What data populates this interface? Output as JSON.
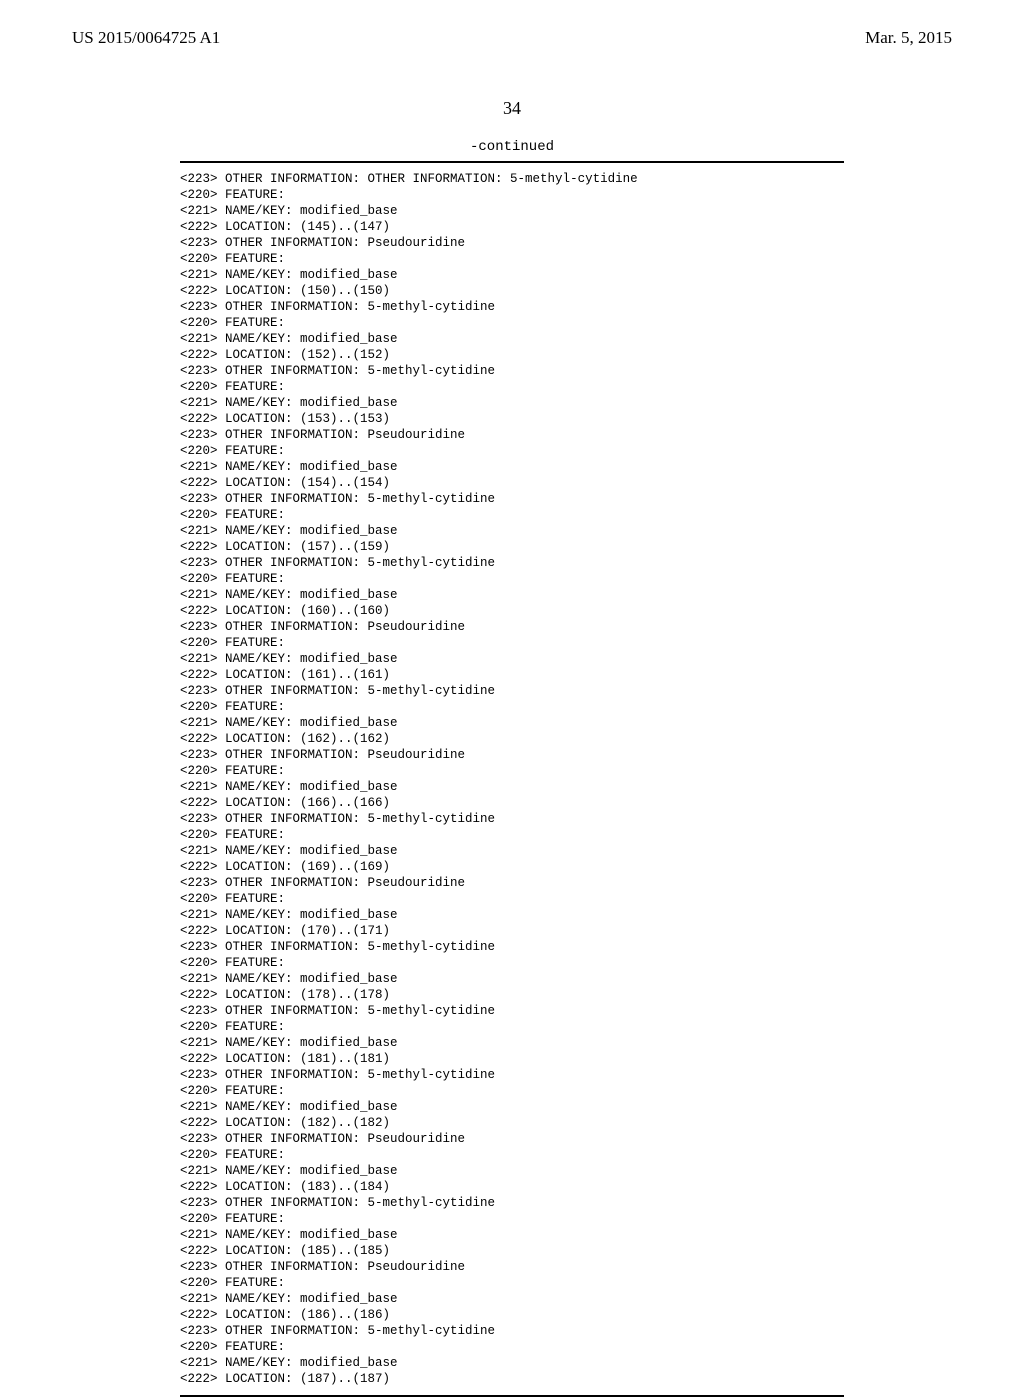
{
  "header": {
    "pub_number": "US 2015/0064725 A1",
    "pub_date": "Mar. 5, 2015"
  },
  "page_number": "34",
  "continued_label": "-continued",
  "features": [
    {
      "tag223": "OTHER INFORMATION: 5-methyl-cytidine",
      "loc": "(145)..(147)",
      "info": "Pseudouridine"
    },
    {
      "loc": "(150)..(150)",
      "info": "5-methyl-cytidine"
    },
    {
      "loc": "(152)..(152)",
      "info": "5-methyl-cytidine"
    },
    {
      "loc": "(153)..(153)",
      "info": "Pseudouridine"
    },
    {
      "loc": "(154)..(154)",
      "info": "5-methyl-cytidine"
    },
    {
      "loc": "(157)..(159)",
      "info": "5-methyl-cytidine"
    },
    {
      "loc": "(160)..(160)",
      "info": "Pseudouridine"
    },
    {
      "loc": "(161)..(161)",
      "info": "5-methyl-cytidine"
    },
    {
      "loc": "(162)..(162)",
      "info": "Pseudouridine"
    },
    {
      "loc": "(166)..(166)",
      "info": "5-methyl-cytidine"
    },
    {
      "loc": "(169)..(169)",
      "info": "Pseudouridine"
    },
    {
      "loc": "(170)..(171)",
      "info": "5-methyl-cytidine"
    },
    {
      "loc": "(178)..(178)",
      "info": "5-methyl-cytidine"
    },
    {
      "loc": "(181)..(181)",
      "info": "5-methyl-cytidine"
    },
    {
      "loc": "(182)..(182)",
      "info": "Pseudouridine"
    },
    {
      "loc": "(183)..(184)",
      "info": "5-methyl-cytidine"
    },
    {
      "loc": "(185)..(185)",
      "info": "Pseudouridine"
    },
    {
      "loc": "(186)..(186)",
      "info": "5-methyl-cytidine"
    },
    {
      "loc_last": "(187)..(187)"
    }
  ],
  "labels": {
    "feature": "<220> FEATURE:",
    "namekey": "<221> NAME/KEY: modified_base",
    "location_prefix": "<222> LOCATION: ",
    "other_info_prefix": "<223> OTHER INFORMATION: "
  }
}
